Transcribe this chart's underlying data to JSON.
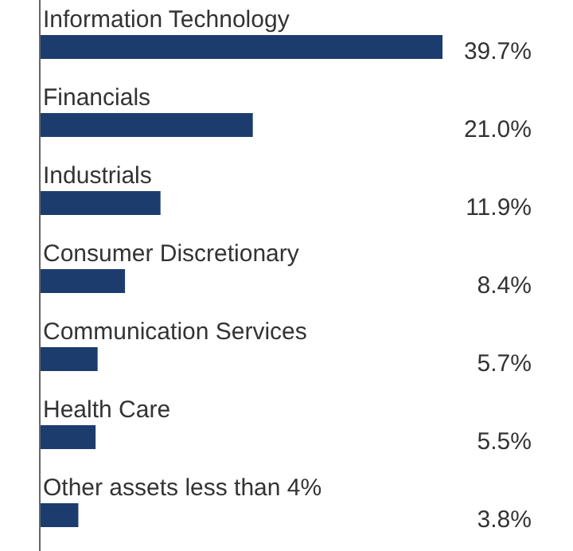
{
  "chart_data": {
    "type": "bar",
    "orientation": "horizontal",
    "categories": [
      "Information Technology",
      "Financials",
      "Industrials",
      "Consumer Discretionary",
      "Communication Services",
      "Health Care",
      "Other assets less than 4%"
    ],
    "values": [
      39.7,
      21.0,
      11.9,
      8.4,
      5.7,
      5.5,
      3.8
    ],
    "value_labels": [
      "39.7%",
      "21.0%",
      "11.9%",
      "8.4%",
      "5.7%",
      "5.5%",
      "3.8%"
    ],
    "color": "#1d3c6e"
  }
}
